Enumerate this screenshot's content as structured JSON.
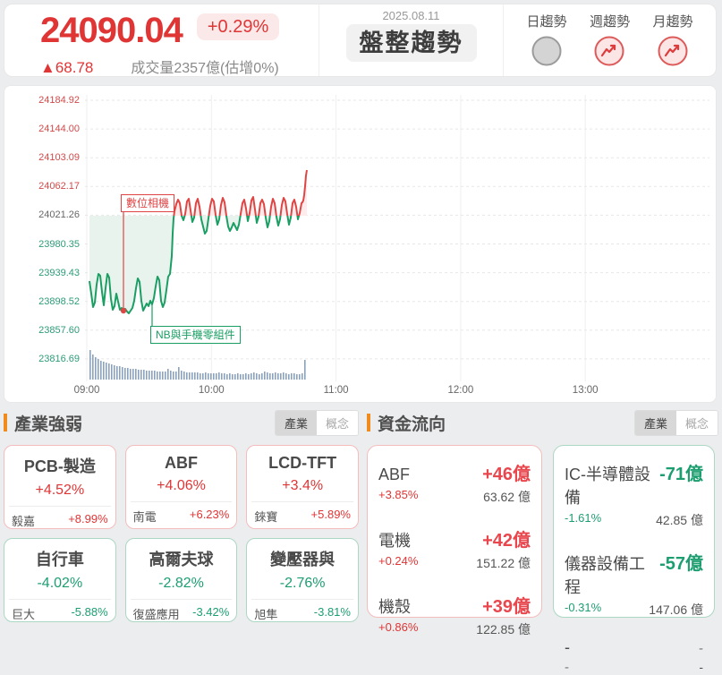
{
  "header": {
    "index_value": "24090.04",
    "change_percent": "+0.29%",
    "change_value": "▲68.78",
    "volume_text": "成交量2357億(估增0%)",
    "date": "2025.08.11",
    "trend_label": "盤整趨勢",
    "trends": [
      {
        "label": "日趨勢",
        "state": "flat"
      },
      {
        "label": "週趨勢",
        "state": "up"
      },
      {
        "label": "月趨勢",
        "state": "up"
      }
    ]
  },
  "chart": {
    "type": "line",
    "reference": "24021.26",
    "y_axis": [
      {
        "label": "24184.92",
        "tone": "up"
      },
      {
        "label": "24144.00",
        "tone": "up"
      },
      {
        "label": "24103.09",
        "tone": "up"
      },
      {
        "label": "24062.17",
        "tone": "up"
      },
      {
        "label": "24021.26",
        "tone": "ref"
      },
      {
        "label": "23980.35",
        "tone": "down"
      },
      {
        "label": "23939.43",
        "tone": "down"
      },
      {
        "label": "23898.52",
        "tone": "down"
      },
      {
        "label": "23857.60",
        "tone": "down"
      },
      {
        "label": "23816.69",
        "tone": "down"
      }
    ],
    "x_axis": [
      "09:00",
      "10:00",
      "11:00",
      "12:00",
      "13:00"
    ],
    "annotations": [
      {
        "text": "數位相機",
        "tone": "red"
      },
      {
        "text": "NB與手機零組件",
        "tone": "green"
      }
    ],
    "colors": {
      "up": "#e04545",
      "down": "#1a9e63",
      "volume": "#8aa2bd",
      "fill_down": "#e8f3ed",
      "fill_up": "#fdeceb"
    },
    "line_points": [
      [
        95,
        218
      ],
      [
        97,
        232
      ],
      [
        99,
        247
      ],
      [
        101,
        242
      ],
      [
        103,
        222
      ],
      [
        105,
        210
      ],
      [
        107,
        212
      ],
      [
        109,
        230
      ],
      [
        111,
        245
      ],
      [
        113,
        226
      ],
      [
        115,
        210
      ],
      [
        117,
        214
      ],
      [
        119,
        238
      ],
      [
        121,
        250
      ],
      [
        123,
        246
      ],
      [
        125,
        232
      ],
      [
        127,
        241
      ],
      [
        129,
        250
      ],
      [
        131,
        248
      ],
      [
        133,
        251
      ],
      [
        135,
        249
      ],
      [
        137,
        252
      ],
      [
        139,
        254
      ],
      [
        141,
        251
      ],
      [
        143,
        248
      ],
      [
        145,
        240
      ],
      [
        147,
        226
      ],
      [
        149,
        215
      ],
      [
        151,
        219
      ],
      [
        153,
        240
      ],
      [
        155,
        251
      ],
      [
        157,
        247
      ],
      [
        159,
        243
      ],
      [
        161,
        246
      ],
      [
        163,
        240
      ],
      [
        165,
        244
      ],
      [
        167,
        237
      ],
      [
        169,
        224
      ],
      [
        171,
        213
      ],
      [
        173,
        217
      ],
      [
        175,
        240
      ],
      [
        177,
        247
      ],
      [
        179,
        242
      ],
      [
        181,
        228
      ],
      [
        183,
        213
      ],
      [
        185,
        210
      ],
      [
        187,
        190
      ],
      [
        188,
        165
      ],
      [
        189,
        148
      ],
      [
        190,
        140
      ],
      [
        192,
        132
      ],
      [
        194,
        127
      ],
      [
        196,
        131
      ],
      [
        198,
        145
      ],
      [
        200,
        150
      ],
      [
        202,
        143
      ],
      [
        204,
        129
      ],
      [
        206,
        126
      ],
      [
        208,
        139
      ],
      [
        210,
        152
      ],
      [
        212,
        147
      ],
      [
        214,
        131
      ],
      [
        216,
        126
      ],
      [
        218,
        135
      ],
      [
        220,
        149
      ],
      [
        222,
        157
      ],
      [
        224,
        165
      ],
      [
        226,
        162
      ],
      [
        228,
        148
      ],
      [
        230,
        134
      ],
      [
        232,
        126
      ],
      [
        234,
        129
      ],
      [
        236,
        144
      ],
      [
        238,
        155
      ],
      [
        240,
        149
      ],
      [
        242,
        133
      ],
      [
        244,
        125
      ],
      [
        246,
        130
      ],
      [
        248,
        145
      ],
      [
        250,
        157
      ],
      [
        252,
        162
      ],
      [
        254,
        158
      ],
      [
        256,
        153
      ],
      [
        258,
        157
      ],
      [
        260,
        161
      ],
      [
        262,
        155
      ],
      [
        264,
        143
      ],
      [
        266,
        131
      ],
      [
        268,
        127
      ],
      [
        270,
        137
      ],
      [
        272,
        151
      ],
      [
        274,
        142
      ],
      [
        276,
        128
      ],
      [
        278,
        124
      ],
      [
        280,
        138
      ],
      [
        282,
        153
      ],
      [
        284,
        146
      ],
      [
        286,
        131
      ],
      [
        288,
        127
      ],
      [
        290,
        132
      ],
      [
        292,
        147
      ],
      [
        294,
        158
      ],
      [
        296,
        151
      ],
      [
        298,
        135
      ],
      [
        300,
        126
      ],
      [
        302,
        131
      ],
      [
        304,
        146
      ],
      [
        306,
        156
      ],
      [
        308,
        149
      ],
      [
        310,
        133
      ],
      [
        312,
        125
      ],
      [
        314,
        129
      ],
      [
        316,
        143
      ],
      [
        318,
        155
      ],
      [
        320,
        147
      ],
      [
        322,
        131
      ],
      [
        324,
        127
      ],
      [
        326,
        135
      ],
      [
        328,
        149
      ],
      [
        330,
        142
      ],
      [
        332,
        131
      ],
      [
        333,
        130
      ],
      [
        334,
        128
      ],
      [
        335,
        122
      ],
      [
        336,
        112
      ],
      [
        337,
        100
      ],
      [
        338,
        94
      ]
    ],
    "volume_bars": [
      33,
      28,
      25,
      23,
      21,
      20,
      19,
      18,
      17,
      16,
      15,
      15,
      14,
      13,
      13,
      12,
      12,
      12,
      11,
      11,
      11,
      10,
      10,
      10,
      10,
      9,
      9,
      9,
      9,
      12,
      10,
      9,
      9,
      14,
      10,
      9,
      8,
      8,
      8,
      8,
      8,
      7,
      7,
      8,
      7,
      7,
      7,
      7,
      8,
      7,
      7,
      6,
      7,
      6,
      6,
      7,
      6,
      6,
      7,
      6,
      7,
      8,
      7,
      6,
      7,
      9,
      8,
      7,
      7,
      8,
      7,
      7,
      8,
      7,
      6,
      7,
      7,
      6,
      6,
      7,
      22
    ]
  },
  "industry": {
    "title": "產業強弱",
    "tabs": [
      {
        "label": "產業",
        "active": true
      },
      {
        "label": "概念",
        "active": false
      }
    ],
    "gainers": [
      {
        "name": "PCB-製造",
        "percent": "+4.52%",
        "top_stock": "毅嘉",
        "top_percent": "+8.99%"
      },
      {
        "name": "ABF",
        "percent": "+4.06%",
        "top_stock": "南電",
        "top_percent": "+6.23%"
      },
      {
        "name": "LCD-TFT",
        "percent": "+3.4%",
        "top_stock": "錸寶",
        "top_percent": "+5.89%"
      }
    ],
    "losers": [
      {
        "name": "自行車",
        "percent": "-4.02%",
        "top_stock": "巨大",
        "top_percent": "-5.88%"
      },
      {
        "name": "高爾夫球",
        "percent": "-2.82%",
        "top_stock": "復盛應用",
        "top_percent": "-3.42%"
      },
      {
        "name": "變壓器與",
        "percent": "-2.76%",
        "top_stock": "旭隼",
        "top_percent": "-3.81%"
      }
    ]
  },
  "money_flow": {
    "title": "資金流向",
    "tabs": [
      {
        "label": "產業",
        "active": true
      },
      {
        "label": "概念",
        "active": false
      }
    ],
    "inflow": [
      {
        "name": "ABF",
        "percent": "+3.85%",
        "amount": "+46億",
        "value": "63.62 億"
      },
      {
        "name": "電機",
        "percent": "+0.24%",
        "amount": "+42億",
        "value": "151.22 億"
      },
      {
        "name": "機殼",
        "percent": "+0.86%",
        "amount": "+39億",
        "value": "122.85 億"
      }
    ],
    "outflow": [
      {
        "name": "IC-半導體設備",
        "amount": "-71億",
        "percent": "-1.61%",
        "value": "42.85 億"
      },
      {
        "name": "儀器設備工程",
        "amount": "-57億",
        "percent": "-0.31%",
        "value": "147.06 億"
      },
      {
        "name": "-",
        "amount": "-",
        "percent": "-",
        "value": "-"
      }
    ]
  }
}
